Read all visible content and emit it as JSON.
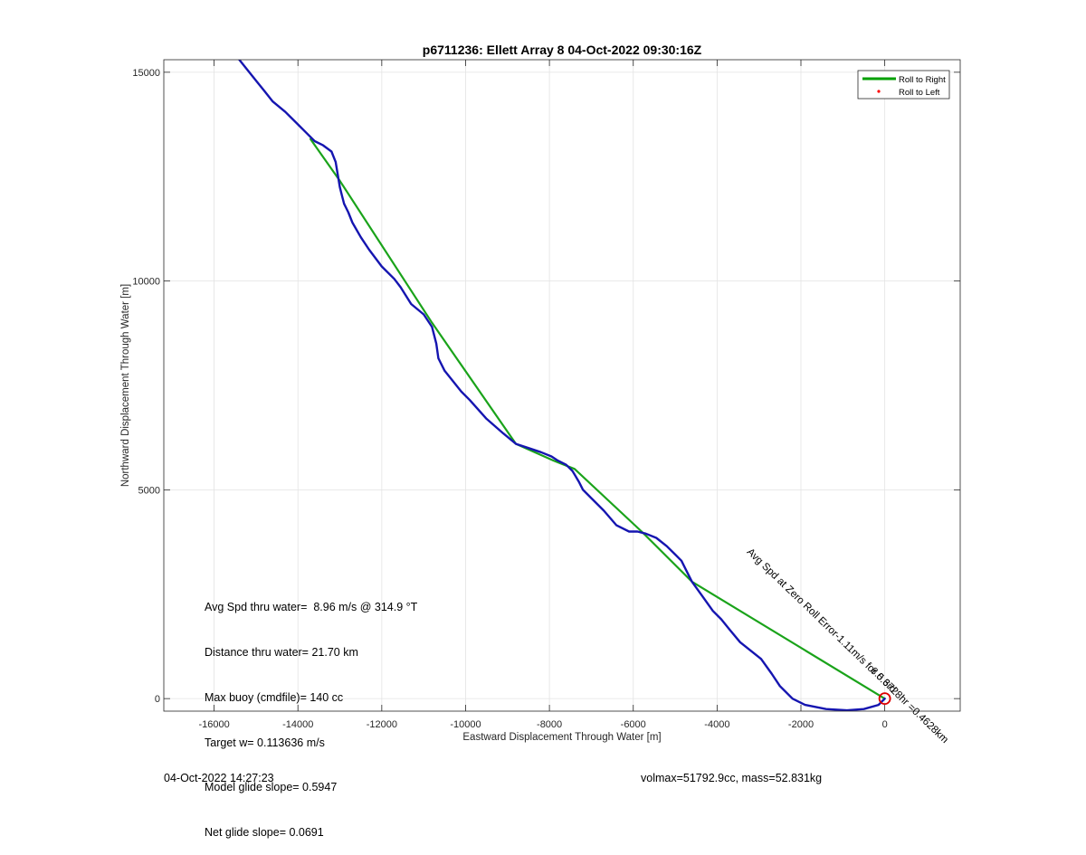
{
  "chart_data": {
    "type": "line",
    "title": "p6711236: Ellett Array 8 04-Oct-2022 09:30:16Z",
    "xlabel": "Eastward Displacement Through Water [m]",
    "ylabel": "Northward Displacement Through Water [m]",
    "xlim": [
      -17200,
      1800
    ],
    "ylim": [
      -300,
      15300
    ],
    "xticks": [
      -16000,
      -14000,
      -12000,
      -10000,
      -8000,
      -6000,
      -4000,
      -2000,
      0
    ],
    "xtick_labels": [
      "-16000",
      "-14000",
      "-12000",
      "-10000",
      "-8000",
      "-6000",
      "-4000",
      "-2000",
      "0"
    ],
    "yticks": [
      0,
      5000,
      10000,
      15000
    ],
    "ytick_labels": [
      "0",
      "5000",
      "10000",
      "15000"
    ],
    "grid": true,
    "legend": {
      "placement": "top-right",
      "entries": [
        {
          "label": "Roll to Right",
          "color": "#00a000",
          "marker": "line"
        },
        {
          "label": "Roll to Left",
          "color": "#ff0000",
          "marker": "dot"
        }
      ]
    },
    "series": [
      {
        "name": "Roll to Right",
        "color": "#1aa31a",
        "points": [
          [
            0,
            0
          ],
          [
            -4600,
            2800
          ],
          [
            -5800,
            4000
          ],
          [
            -7400,
            5500
          ],
          [
            -7900,
            5700
          ],
          [
            -8800,
            6100
          ],
          [
            -10800,
            9000
          ],
          [
            -13000,
            12400
          ],
          [
            -13700,
            13400
          ]
        ]
      },
      {
        "color": "#1515b0",
        "points": [
          [
            0,
            0
          ],
          [
            -150,
            -150
          ],
          [
            -500,
            -250
          ],
          [
            -900,
            -280
          ],
          [
            -1400,
            -250
          ],
          [
            -1900,
            -150
          ],
          [
            -2200,
            0
          ],
          [
            -2500,
            300
          ],
          [
            -2700,
            600
          ],
          [
            -2950,
            950
          ],
          [
            -3200,
            1150
          ],
          [
            -3450,
            1350
          ],
          [
            -3700,
            1650
          ],
          [
            -3900,
            1900
          ],
          [
            -4100,
            2100
          ],
          [
            -4350,
            2450
          ],
          [
            -4600,
            2800
          ],
          [
            -4750,
            3100
          ],
          [
            -4850,
            3300
          ],
          [
            -5000,
            3450
          ],
          [
            -5200,
            3650
          ],
          [
            -5450,
            3850
          ],
          [
            -5700,
            3950
          ],
          [
            -5900,
            4000
          ],
          [
            -6100,
            4000
          ],
          [
            -6400,
            4150
          ],
          [
            -6700,
            4500
          ],
          [
            -7000,
            4800
          ],
          [
            -7200,
            5000
          ],
          [
            -7300,
            5200
          ],
          [
            -7450,
            5450
          ],
          [
            -7600,
            5600
          ],
          [
            -7800,
            5700
          ],
          [
            -7950,
            5800
          ],
          [
            -8200,
            5900
          ],
          [
            -8500,
            6000
          ],
          [
            -8800,
            6100
          ],
          [
            -9100,
            6350
          ],
          [
            -9500,
            6700
          ],
          [
            -9900,
            7150
          ],
          [
            -10100,
            7350
          ],
          [
            -10300,
            7600
          ],
          [
            -10500,
            7850
          ],
          [
            -10650,
            8150
          ],
          [
            -10700,
            8500
          ],
          [
            -10800,
            8900
          ],
          [
            -11000,
            9200
          ],
          [
            -11300,
            9450
          ],
          [
            -11550,
            9850
          ],
          [
            -11700,
            10050
          ],
          [
            -12000,
            10350
          ],
          [
            -12300,
            10750
          ],
          [
            -12500,
            11050
          ],
          [
            -12700,
            11400
          ],
          [
            -12800,
            11650
          ],
          [
            -12900,
            11850
          ],
          [
            -12950,
            12050
          ],
          [
            -13000,
            12250
          ],
          [
            -13050,
            12550
          ],
          [
            -13100,
            12850
          ],
          [
            -13200,
            13100
          ],
          [
            -13400,
            13250
          ],
          [
            -13600,
            13350
          ],
          [
            -13800,
            13550
          ],
          [
            -14000,
            13750
          ],
          [
            -14300,
            14050
          ],
          [
            -14600,
            14300
          ],
          [
            -14800,
            14550
          ],
          [
            -15000,
            14800
          ],
          [
            -15200,
            15050
          ],
          [
            -15400,
            15300
          ]
        ]
      }
    ],
    "endpoint_marker": {
      "x": 0,
      "y": 0,
      "color": "#dd0000"
    },
    "annotation": {
      "text": "Avg Spd at Zero Roll Error-1.11m/s for 0.6728hr =0.4628km",
      "x": -3300,
      "y": 3500
    },
    "tiny_label": {
      "text": "8.5 3rd",
      "x": -350,
      "y": 650
    }
  },
  "stats": {
    "lines": [
      "Avg Spd thru water=  8.96 m/s @ 314.9 °T",
      "Distance thru water= 21.70 km",
      "Max buoy (cmdfile)= 140 cc",
      "Target w= 0.113636 m/s",
      "Model glide slope= 0.5947",
      "Net glide slope= 0.0691"
    ]
  },
  "footer": {
    "left": "04-Oct-2022 14:27:23",
    "right": "volmax=51792.9cc, mass=52.831kg"
  }
}
